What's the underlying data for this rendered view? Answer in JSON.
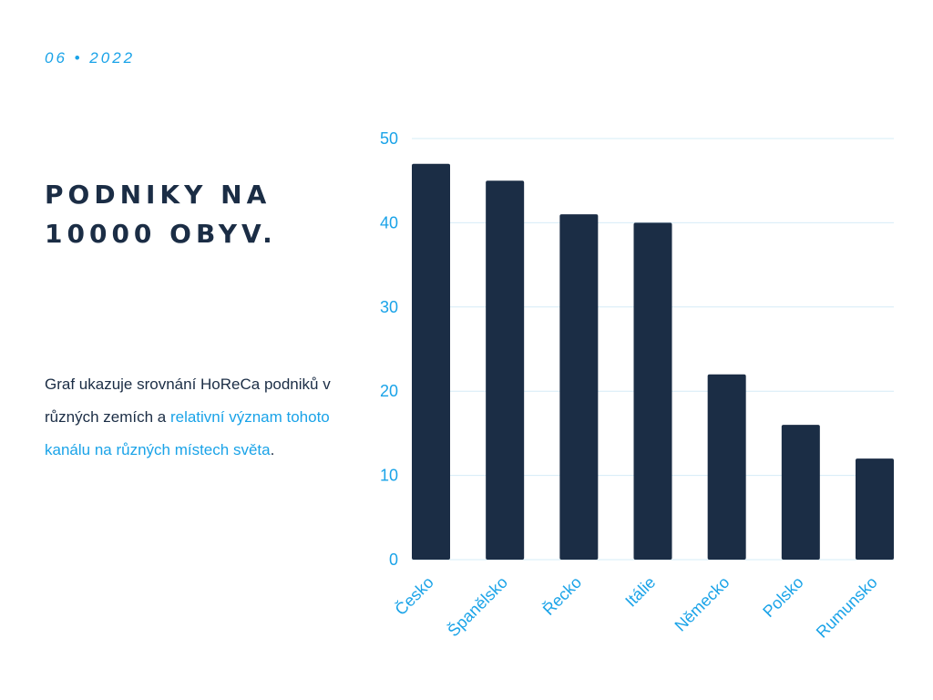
{
  "header": {
    "date": "06 • 2022"
  },
  "title": {
    "line1": "PODNIKY NA",
    "line2": "10000 OBYV."
  },
  "description": {
    "part1": "Graf ukazuje srovnání HoReCa podniků v různých zemích a ",
    "highlight": "relativní význam tohoto kanálu na různých místech světa",
    "part2": "."
  },
  "colors": {
    "bar": "#1b2d45",
    "accent": "#1aa3e8",
    "grid": "#d6ecf7"
  },
  "chart_data": {
    "type": "bar",
    "categories": [
      "Česko",
      "Španělsko",
      "Řecko",
      "Itálie",
      "Německo",
      "Polsko",
      "Rumunsko"
    ],
    "values": [
      47,
      45,
      41,
      40,
      22,
      16,
      12
    ],
    "ylim": [
      0,
      50
    ],
    "yticks": [
      0,
      10,
      20,
      30,
      40,
      50
    ],
    "grid": true,
    "legend": "none"
  }
}
